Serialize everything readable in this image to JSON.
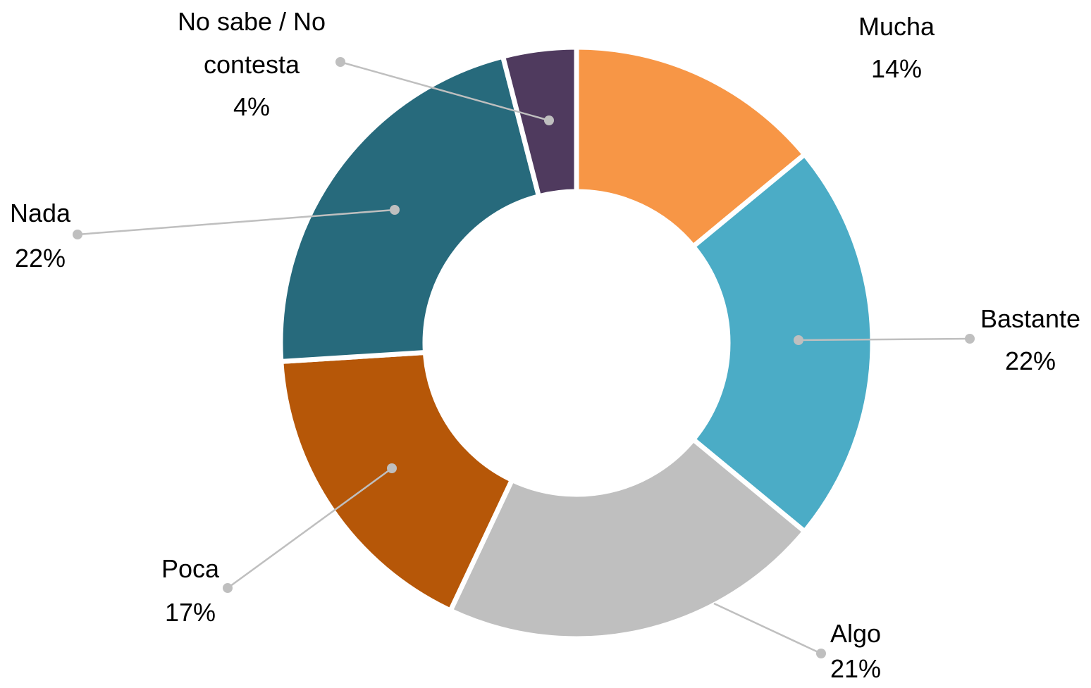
{
  "chart_data": {
    "type": "donut",
    "categories": [
      "Mucha",
      "Bastante",
      "Algo",
      "Poca",
      "Nada",
      "No sabe / No contesta"
    ],
    "values": [
      14,
      22,
      21,
      17,
      22,
      4
    ],
    "value_labels": [
      "14%",
      "22%",
      "21%",
      "17%",
      "22%",
      "4%"
    ],
    "colors": [
      "#f79646",
      "#4bacc6",
      "#bfbfbf",
      "#b65708",
      "#276a7c",
      "#4f3a5e"
    ]
  }
}
